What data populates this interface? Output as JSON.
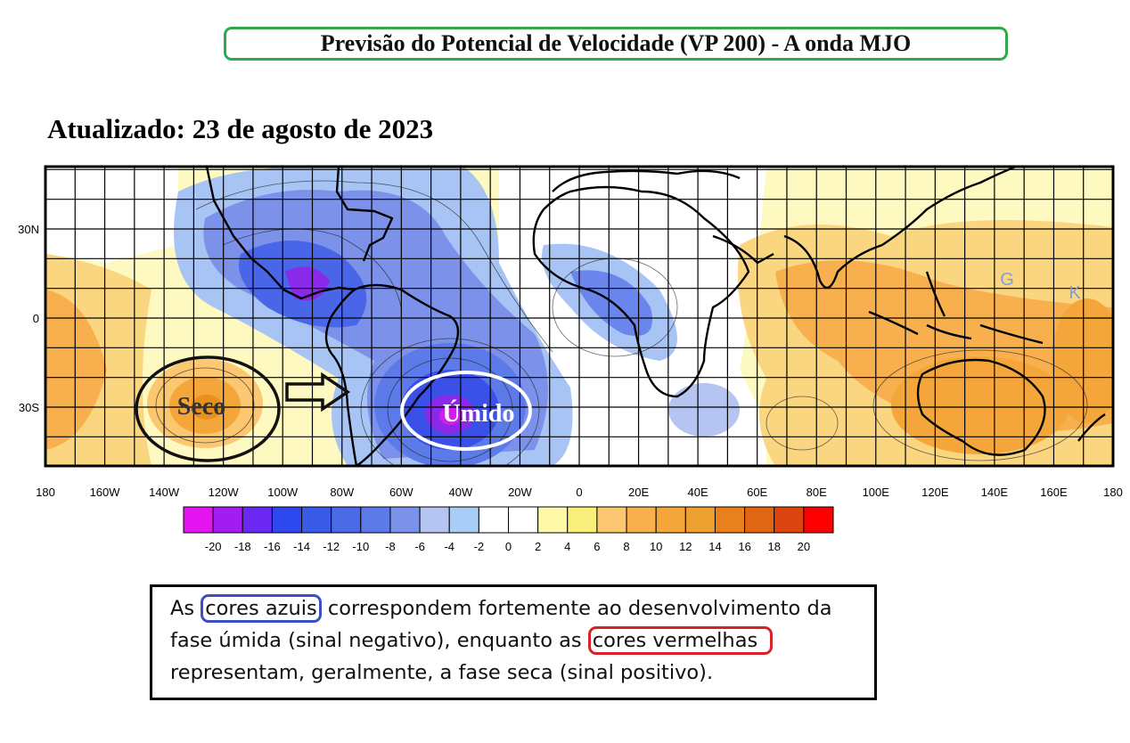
{
  "header": {
    "title": "Previsão do Potencial de Velocidade (VP 200) - A onda MJO",
    "updated": "Atualizado: 23 de agosto de 2023"
  },
  "map": {
    "lat_labels": [
      "30N",
      "0",
      "30S"
    ],
    "lon_labels": [
      "180",
      "160W",
      "140W",
      "120W",
      "100W",
      "80W",
      "60W",
      "40W",
      "20W",
      "0",
      "20E",
      "40E",
      "60E",
      "80E",
      "100E",
      "120E",
      "140E",
      "160E",
      "180"
    ],
    "annotations": {
      "dry": "Seco",
      "wet": "Úmido",
      "letter_g": "G",
      "letter_k": "K"
    },
    "colors": {
      "dry_ellipse": "#111111",
      "wet_ellipse": "#ffffff",
      "land_outline": "#000000",
      "mark_letters": "#7aa0d8"
    }
  },
  "colorbar": {
    "colors": [
      "#e414f0",
      "#a21ef0",
      "#6a28f0",
      "#2c48ee",
      "#3a5ae8",
      "#4a6ae8",
      "#5c7ae8",
      "#7c92ea",
      "#b6c4f2",
      "#a8cdf6",
      "#ffffff",
      "#ffffff",
      "#fef9a8",
      "#f8f07a",
      "#fbc770",
      "#f8b04e",
      "#f5a63a",
      "#eea030",
      "#e8801e",
      "#e06614",
      "#dc4410",
      "#ff0000"
    ],
    "tick_labels": [
      "-20",
      "-18",
      "-16",
      "-14",
      "-12",
      "-10",
      "-8",
      "-6",
      "-4",
      "-2",
      "0",
      "2",
      "4",
      "6",
      "8",
      "10",
      "12",
      "14",
      "16",
      "18",
      "20"
    ]
  },
  "note": {
    "part1": "As ",
    "blue_phrase": "cores azuis",
    "part2": " correspondem fortemente ao desenvolvimento da fase úmida (sinal negativo), enquanto as ",
    "red_phrase": "cores vermelhas",
    "part3": " representam, geralmente, a fase seca (sinal positivo)."
  }
}
